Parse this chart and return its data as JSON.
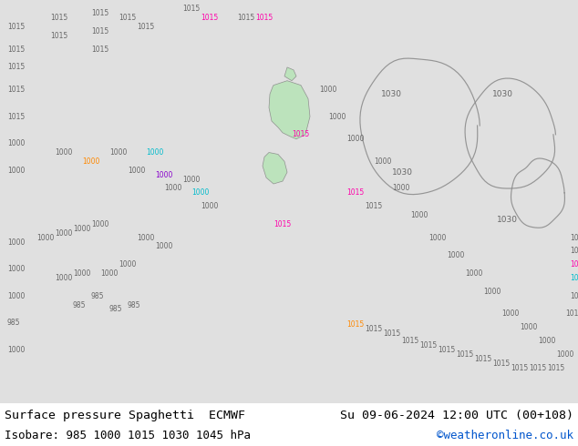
{
  "title_left": "Surface pressure Spaghetti  ECMWF",
  "title_right": "Su 09-06-2024 12:00 UTC (00+108)",
  "subtitle_left": "Isobare: 985 1000 1015 1030 1045 hPa",
  "subtitle_right": "©weatheronline.co.uk",
  "subtitle_right_color": "#0055cc",
  "bg_color": "#d8d8d8",
  "map_bg": "#e0e0e0",
  "text_color": "#000000",
  "title_fontsize": 9.5,
  "subtitle_fontsize": 9.0,
  "figsize": [
    6.34,
    4.9
  ],
  "dpi": 100,
  "gray_line_color": "#777777",
  "gray_label_color": "#666666"
}
